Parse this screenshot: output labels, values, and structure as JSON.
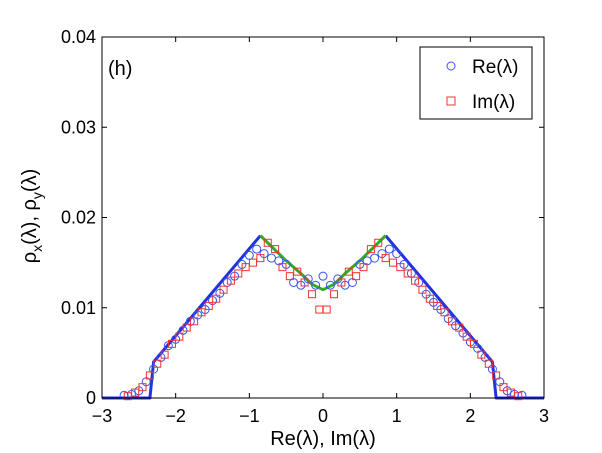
{
  "chart_data": {
    "type": "scatter",
    "panel_label": "(h)",
    "xlabel": "Re(λ), Im(λ)",
    "ylabel_parts": [
      "ρ",
      "x",
      "(λ), ρ",
      "y",
      "(λ)"
    ],
    "xlim": [
      -3,
      3
    ],
    "ylim": [
      0,
      0.04
    ],
    "xticks": [
      -3,
      -2,
      -1,
      0,
      1,
      2,
      3
    ],
    "yticks": [
      0,
      0.01,
      0.02,
      0.03,
      0.04
    ],
    "ytick_labels": [
      "0",
      "0.01",
      "0.02",
      "0.03",
      "0.04"
    ],
    "legend": {
      "position": "top-right",
      "entries": [
        "Re(λ)",
        "Im(λ)"
      ]
    },
    "colors": {
      "re": "#3355ee",
      "im": "#ee3333",
      "outer_line": "#2233dd",
      "inner_line": "#33aa22"
    },
    "series": [
      {
        "name": "Re(λ)",
        "marker": "circle",
        "x": [
          -2.7,
          -2.6,
          -2.5,
          -2.4,
          -2.3,
          -2.2,
          -2.1,
          -2.0,
          -1.9,
          -1.8,
          -1.7,
          -1.6,
          -1.5,
          -1.4,
          -1.3,
          -1.2,
          -1.1,
          -1.0,
          -0.9,
          -0.8,
          -0.7,
          -0.6,
          -0.5,
          -0.4,
          -0.3,
          -0.2,
          -0.1,
          0.0,
          0.1,
          0.2,
          0.3,
          0.4,
          0.5,
          0.6,
          0.7,
          0.8,
          0.9,
          1.0,
          1.1,
          1.2,
          1.3,
          1.4,
          1.5,
          1.6,
          1.7,
          1.8,
          1.9,
          2.0,
          2.1,
          2.2,
          2.3,
          2.4,
          2.5,
          2.6,
          2.7
        ],
        "y": [
          0.0003,
          0.0004,
          0.0008,
          0.0018,
          0.0032,
          0.0045,
          0.0058,
          0.0065,
          0.0075,
          0.0085,
          0.0092,
          0.0098,
          0.0108,
          0.0116,
          0.0128,
          0.0135,
          0.0148,
          0.0158,
          0.0165,
          0.016,
          0.0155,
          0.0152,
          0.0148,
          0.0128,
          0.0125,
          0.0132,
          0.0125,
          0.0135,
          0.0125,
          0.0132,
          0.0125,
          0.0128,
          0.0148,
          0.0152,
          0.0155,
          0.016,
          0.0165,
          0.016,
          0.0148,
          0.0138,
          0.0128,
          0.0115,
          0.0106,
          0.0098,
          0.0088,
          0.008,
          0.0072,
          0.0062,
          0.0055,
          0.0045,
          0.0032,
          0.0018,
          0.0008,
          0.0004,
          0.0003
        ]
      },
      {
        "name": "Im(λ)",
        "marker": "square",
        "x": [
          -2.65,
          -2.55,
          -2.45,
          -2.35,
          -2.25,
          -2.15,
          -2.05,
          -1.95,
          -1.85,
          -1.75,
          -1.65,
          -1.55,
          -1.45,
          -1.35,
          -1.25,
          -1.15,
          -1.05,
          -0.95,
          -0.85,
          -0.75,
          -0.65,
          -0.55,
          -0.45,
          -0.35,
          -0.25,
          -0.15,
          -0.05,
          0.05,
          0.15,
          0.25,
          0.35,
          0.45,
          0.55,
          0.65,
          0.75,
          0.85,
          0.95,
          1.05,
          1.15,
          1.25,
          1.35,
          1.45,
          1.55,
          1.65,
          1.75,
          1.85,
          1.95,
          2.05,
          2.15,
          2.25,
          2.35,
          2.45,
          2.55,
          2.65
        ],
        "y": [
          0.0002,
          0.0006,
          0.0012,
          0.0025,
          0.0038,
          0.0048,
          0.006,
          0.0068,
          0.0078,
          0.0085,
          0.0095,
          0.0102,
          0.011,
          0.012,
          0.013,
          0.0138,
          0.0145,
          0.015,
          0.0155,
          0.0172,
          0.0165,
          0.0145,
          0.0135,
          0.014,
          0.0128,
          0.0115,
          0.0098,
          0.0098,
          0.0115,
          0.0128,
          0.014,
          0.0135,
          0.0145,
          0.0165,
          0.0172,
          0.0155,
          0.015,
          0.0145,
          0.0138,
          0.013,
          0.012,
          0.011,
          0.0102,
          0.0095,
          0.0085,
          0.0078,
          0.0068,
          0.006,
          0.0048,
          0.0038,
          0.0025,
          0.0012,
          0.0006,
          0.0002
        ]
      }
    ],
    "lines": [
      {
        "name": "outer-theory",
        "color": "#2233dd",
        "segments": [
          [
            [
              -3,
              0
            ],
            [
              -2.35,
              0
            ],
            [
              -2.3,
              0.004
            ],
            [
              -0.85,
              0.018
            ]
          ],
          [
            [
              0.85,
              0.018
            ],
            [
              2.3,
              0.004
            ],
            [
              2.35,
              0
            ],
            [
              3,
              0
            ]
          ]
        ]
      },
      {
        "name": "inner-theory",
        "color": "#33aa22",
        "segments": [
          [
            [
              -0.85,
              0.018
            ],
            [
              -0.7,
              0.0168
            ],
            [
              -0.5,
              0.0152
            ],
            [
              -0.3,
              0.0138
            ],
            [
              -0.15,
              0.0126
            ],
            [
              0,
              0.012
            ],
            [
              0.15,
              0.0126
            ],
            [
              0.3,
              0.0138
            ],
            [
              0.5,
              0.0152
            ],
            [
              0.7,
              0.0168
            ],
            [
              0.85,
              0.018
            ]
          ]
        ]
      }
    ]
  }
}
